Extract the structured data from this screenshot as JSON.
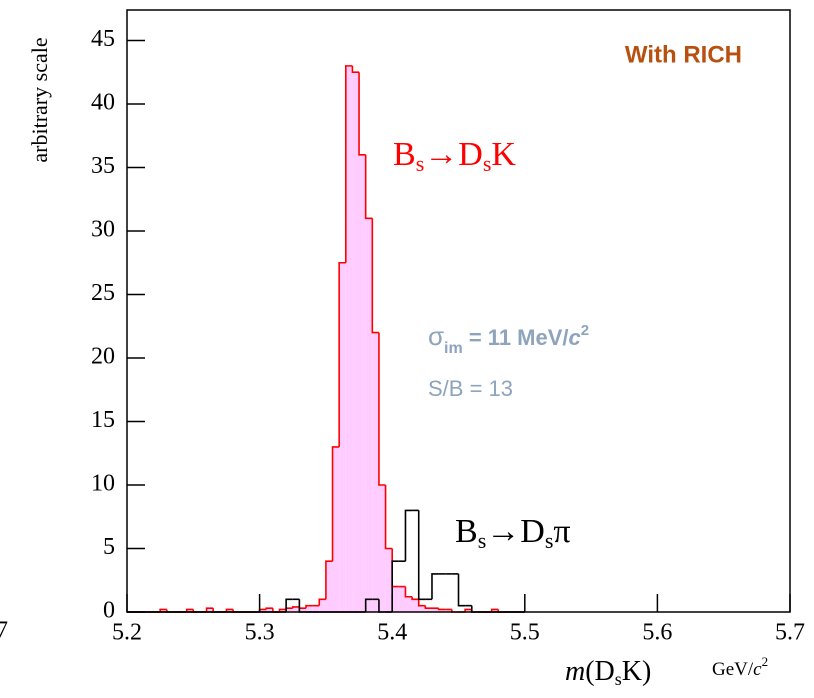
{
  "chart_data": {
    "type": "histogram",
    "edge_label": "7",
    "y_label": "arbitrary scale",
    "x_label": {
      "var": "m",
      "parts": [
        "(D",
        "s",
        "K)"
      ],
      "unit": [
        "GeV/",
        "c",
        "2"
      ]
    },
    "annotations": {
      "title": "With RICH",
      "resolution": [
        "σ",
        "im",
        " = 11 MeV/",
        "c",
        "2"
      ],
      "ratio": "S/B = 13"
    },
    "bins": [
      5.2,
      5.205,
      5.21,
      5.215,
      5.22,
      5.225,
      5.23,
      5.235,
      5.24,
      5.245,
      5.25,
      5.255,
      5.26,
      5.265,
      5.27,
      5.275,
      5.28,
      5.285,
      5.29,
      5.295,
      5.3,
      5.305,
      5.31,
      5.315,
      5.32,
      5.325,
      5.33,
      5.335,
      5.34,
      5.345,
      5.35,
      5.355,
      5.36,
      5.365,
      5.37,
      5.375,
      5.38,
      5.385,
      5.39,
      5.395,
      5.4,
      5.405,
      5.41,
      5.415,
      5.42,
      5.425,
      5.43,
      5.435,
      5.44,
      5.445,
      5.45,
      5.455,
      5.46,
      5.465,
      5.47,
      5.475,
      5.48,
      5.485,
      5.49,
      5.495,
      5.5
    ],
    "series": [
      {
        "label": [
          "B",
          "s",
          "→D",
          "s",
          "K"
        ],
        "color": "#ff0000",
        "fill": "#ffccff",
        "values": [
          0,
          0,
          0,
          0,
          0,
          0.2,
          0,
          0,
          0,
          0.2,
          0,
          0,
          0.3,
          0,
          0,
          0.2,
          0,
          0,
          0,
          0,
          0.2,
          0.3,
          0,
          0.2,
          0.3,
          0.4,
          0.3,
          0.5,
          0.5,
          1,
          4,
          13,
          27.5,
          43,
          42.5,
          36,
          31,
          22,
          10,
          5,
          2,
          2,
          1.2,
          1,
          0.5,
          0.3,
          0.3,
          0.2,
          0.2,
          0,
          0,
          0.2,
          0,
          0,
          0,
          0.2,
          0,
          0,
          0,
          0
        ]
      },
      {
        "label": [
          "B",
          "s",
          "→D",
          "s",
          "π"
        ],
        "color": "#000000",
        "values": [
          0,
          0,
          0,
          0,
          0,
          0,
          0,
          0,
          0,
          0,
          0,
          0,
          0,
          0,
          0,
          0,
          0,
          0,
          0,
          0,
          0,
          0,
          0,
          0,
          1,
          1,
          0,
          0,
          0,
          0,
          0,
          0,
          0,
          0,
          0,
          0,
          1,
          1,
          0,
          0,
          4,
          4,
          8,
          8,
          1,
          1,
          3,
          3,
          3,
          3,
          0.5,
          0.5,
          0,
          0,
          0,
          0,
          0,
          0,
          0,
          0
        ]
      }
    ],
    "xlim": [
      5.2,
      5.7
    ],
    "xticks": [
      {
        "value": 5.2,
        "label": "5.2"
      },
      5.3,
      5.4,
      5.5,
      5.6,
      5.7
    ],
    "ylim": [
      0,
      47.4
    ],
    "yticks": [
      0,
      5,
      10,
      15,
      20,
      25,
      30,
      35,
      40,
      45
    ]
  }
}
